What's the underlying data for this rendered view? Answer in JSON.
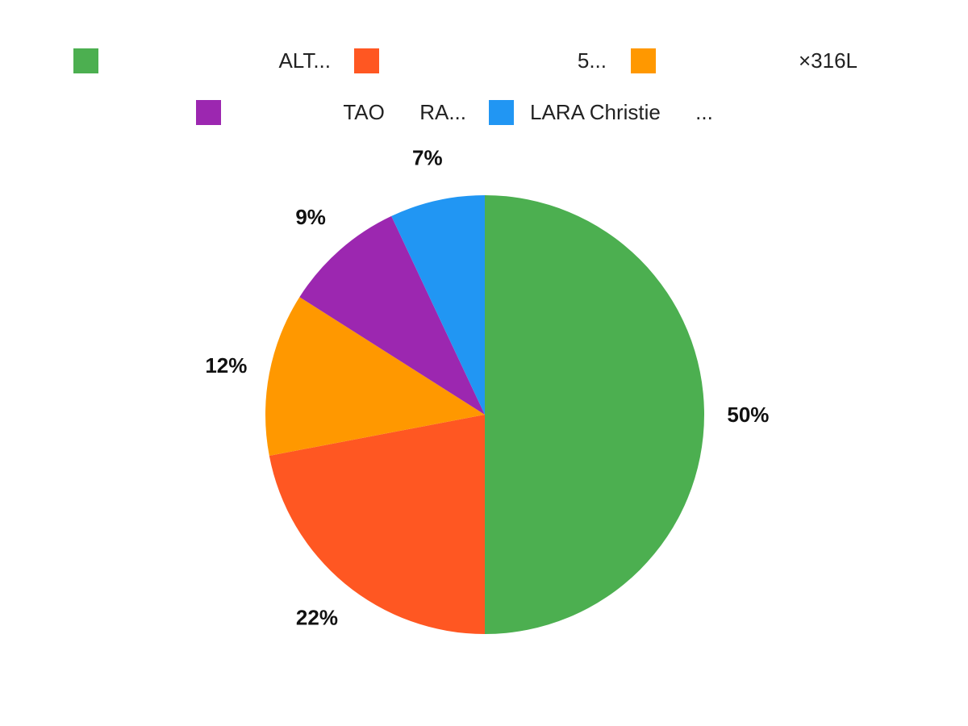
{
  "chart_data": {
    "type": "pie",
    "legend_placement": "top",
    "slices": [
      {
        "label": "ALT...",
        "value": 50,
        "data_label": "50%",
        "color": "#4CAF50"
      },
      {
        "label": "5...",
        "value": 22,
        "data_label": "22%",
        "color": "#FF5722"
      },
      {
        "label": "×316L",
        "value": 12,
        "data_label": "12%",
        "color": "#FF9800"
      },
      {
        "label": "TAO      RA...",
        "value": 9,
        "data_label": "9%",
        "color": "#9C27B0"
      },
      {
        "label": "LARA Christie      ...",
        "value": 7,
        "data_label": "7%",
        "color": "#2196F3"
      }
    ]
  }
}
